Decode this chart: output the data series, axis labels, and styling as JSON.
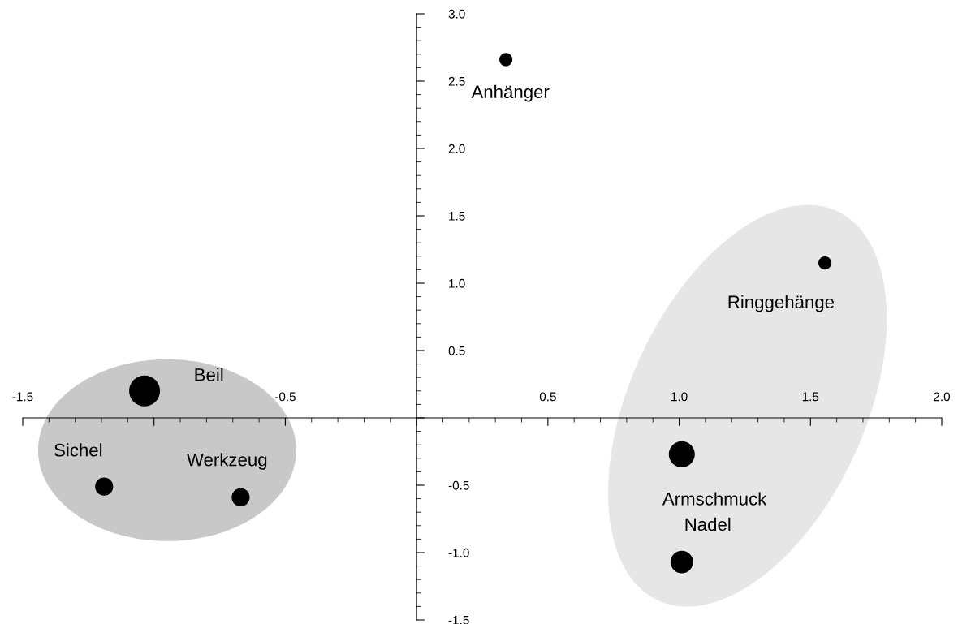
{
  "chart_data": {
    "type": "bubble",
    "x": [
      0.34,
      1.555,
      -1.036,
      -1.19,
      -0.67,
      1.01,
      1.01
    ],
    "values": [
      2.66,
      1.15,
      0.2,
      -0.51,
      -0.59,
      -0.27,
      -1.07
    ],
    "sizes": [
      0.18,
      0.18,
      1,
      0.34,
      0.34,
      0.71,
      0.54
    ],
    "color": "#000000",
    "xlim": [
      -1.5,
      2.0
    ],
    "ylim": [
      -1.5,
      3.0
    ],
    "xticks": [
      -1.5,
      {
        "value": -1.0,
        "label": null
      },
      -0.5,
      {
        "value": 0,
        "label": null
      },
      0.5,
      {
        "value": 1.0,
        "label": "1.0"
      },
      1.5,
      {
        "value": 2.0,
        "label": "2.0"
      }
    ],
    "yticks": [
      -1.5,
      {
        "value": -1.0,
        "label": "-1.0"
      },
      -0.5,
      {
        "value": 0,
        "label": null
      },
      0.5,
      {
        "value": 1.0,
        "label": "1.0"
      },
      1.5,
      {
        "value": 2.0,
        "label": "2.0"
      },
      2.5,
      {
        "value": 3.0,
        "label": "3.0"
      }
    ],
    "grid": false,
    "annotations": [
      {
        "text": "Anhänger",
        "x": 0.34,
        "y": 2.66
      },
      {
        "text": "Ringgehänge",
        "x": 1.555,
        "y": 1.15
      },
      {
        "text": "Beil",
        "x": -1.036,
        "y": 0.2
      },
      {
        "text": "Sichel",
        "x": -1.19,
        "y": -0.51
      },
      {
        "text": "Werkzeug",
        "x": -0.67,
        "y": -0.59
      },
      {
        "text": "Armschmuck",
        "x": 1.01,
        "y": -0.27
      },
      {
        "text": "Nadel",
        "x": 1.01,
        "y": -1.07
      }
    ]
  }
}
